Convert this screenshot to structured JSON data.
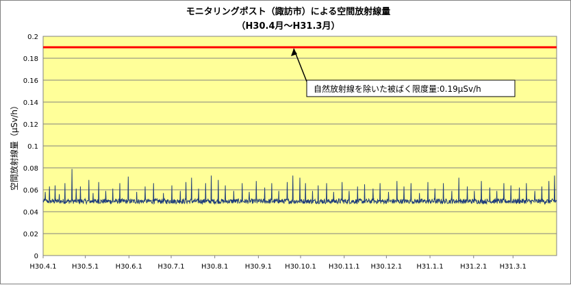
{
  "chart_data": {
    "type": "line",
    "title": "モニタリングポスト（諏訪市）による空間放射線量",
    "subtitle": "（H30.4月～H31.3月）",
    "xlabel": "",
    "ylabel": "空間放射線量（μSv/h）",
    "ylim": [
      0,
      0.2
    ],
    "y_ticks": [
      "0",
      "0.02",
      "0.04",
      "0.06",
      "0.08",
      "0.1",
      "0.12",
      "0.14",
      "0.16",
      "0.18",
      "0.2"
    ],
    "x_tick_labels": [
      "H30.4.1",
      "H30.5.1",
      "H30.6.1",
      "H30.7.1",
      "H30.8.1",
      "H30.9.1",
      "H30.10.1",
      "H30.11.1",
      "H30.12.1",
      "H31.1.1",
      "H31.2.1",
      "H31.3.1"
    ],
    "x_tick_day_offsets": [
      0,
      30,
      61,
      91,
      122,
      153,
      183,
      214,
      244,
      275,
      306,
      334
    ],
    "x_range_days": 365,
    "grid": true,
    "plot_background": "#ffff99",
    "reference_line": {
      "value": 0.19,
      "color": "#ff0000"
    },
    "annotation": "自然放射線を除いた被ばく限度量:0.19μSv/h",
    "series": [
      {
        "color": "#1f3d7a",
        "baseline": 0.0495,
        "spikes_day_value": [
          [
            2,
            0.058
          ],
          [
            5,
            0.063
          ],
          [
            9,
            0.064
          ],
          [
            12,
            0.056
          ],
          [
            16,
            0.066
          ],
          [
            21,
            0.079
          ],
          [
            24,
            0.061
          ],
          [
            27,
            0.063
          ],
          [
            33,
            0.069
          ],
          [
            36,
            0.057
          ],
          [
            40,
            0.067
          ],
          [
            45,
            0.059
          ],
          [
            50,
            0.061
          ],
          [
            55,
            0.066
          ],
          [
            61,
            0.072
          ],
          [
            67,
            0.058
          ],
          [
            73,
            0.063
          ],
          [
            79,
            0.066
          ],
          [
            86,
            0.057
          ],
          [
            92,
            0.064
          ],
          [
            98,
            0.059
          ],
          [
            102,
            0.067
          ],
          [
            106,
            0.071
          ],
          [
            111,
            0.061
          ],
          [
            116,
            0.066
          ],
          [
            120,
            0.073
          ],
          [
            125,
            0.069
          ],
          [
            130,
            0.064
          ],
          [
            136,
            0.059
          ],
          [
            142,
            0.066
          ],
          [
            147,
            0.058
          ],
          [
            152,
            0.068
          ],
          [
            158,
            0.062
          ],
          [
            163,
            0.066
          ],
          [
            168,
            0.059
          ],
          [
            174,
            0.067
          ],
          [
            178,
            0.073
          ],
          [
            183,
            0.071
          ],
          [
            187,
            0.066
          ],
          [
            192,
            0.059
          ],
          [
            196,
            0.064
          ],
          [
            202,
            0.066
          ],
          [
            207,
            0.058
          ],
          [
            213,
            0.067
          ],
          [
            218,
            0.059
          ],
          [
            224,
            0.063
          ],
          [
            229,
            0.065
          ],
          [
            235,
            0.061
          ],
          [
            240,
            0.066
          ],
          [
            246,
            0.058
          ],
          [
            252,
            0.068
          ],
          [
            257,
            0.063
          ],
          [
            262,
            0.066
          ],
          [
            268,
            0.057
          ],
          [
            274,
            0.067
          ],
          [
            279,
            0.061
          ],
          [
            285,
            0.066
          ],
          [
            291,
            0.059
          ],
          [
            296,
            0.071
          ],
          [
            302,
            0.063
          ],
          [
            307,
            0.059
          ],
          [
            312,
            0.068
          ],
          [
            318,
            0.062
          ],
          [
            323,
            0.059
          ],
          [
            328,
            0.066
          ],
          [
            333,
            0.064
          ],
          [
            339,
            0.062
          ],
          [
            344,
            0.066
          ],
          [
            350,
            0.059
          ],
          [
            355,
            0.063
          ],
          [
            360,
            0.068
          ],
          [
            364,
            0.073
          ]
        ]
      }
    ]
  }
}
